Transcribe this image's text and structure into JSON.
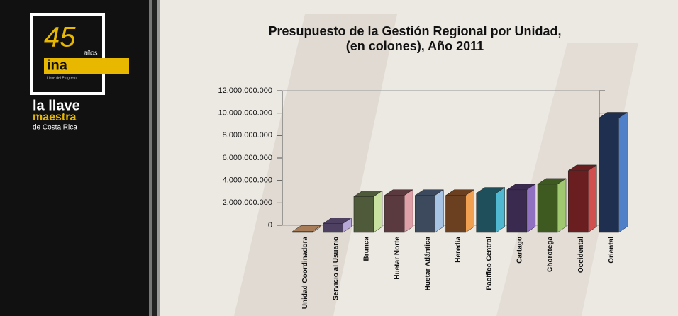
{
  "logo": {
    "number": "45",
    "years": "años",
    "brand": "ina",
    "motto": "Llave del Progreso",
    "line1": "la llave",
    "line2": "maestra",
    "line3": "de Costa Rica"
  },
  "chart_data": {
    "type": "bar3d",
    "title": "Presupuesto de la Gestión Regional por Unidad,",
    "subtitle": "(en colones), Año 2011",
    "categories": [
      "Unidad Coordinadora",
      "Servicio al Usuario",
      "Brunca",
      "Huetar Norte",
      "Huetar Atlántica",
      "Heredia",
      "Pacífico Central",
      "Cartago",
      "Chorotega",
      "Occidental",
      "Oriental"
    ],
    "values": [
      100000000,
      800000000,
      3200000000,
      3300000000,
      3300000000,
      3300000000,
      3500000000,
      3800000000,
      4300000000,
      5500000000,
      10200000000
    ],
    "colors": [
      "#a97c58",
      "#4d4060",
      "#4e5a3a",
      "#5a3a3e",
      "#3d4a5e",
      "#6b4020",
      "#1f4f5a",
      "#3a2a50",
      "#3e5a20",
      "#6a1e20",
      "#1f2f50"
    ],
    "side_colors": [
      "#d4a88a",
      "#b8a8d8",
      "#c8e0a0",
      "#e0a0a8",
      "#a8c4e4",
      "#f0a050",
      "#50b8d0",
      "#9070c0",
      "#a0c870",
      "#d05050",
      "#5080c8"
    ],
    "ylim": [
      0,
      12000000000
    ],
    "yticks": [
      0,
      {
        "value": 2000000000,
        "label": "2.000.000.000"
      },
      {
        "value": 4000000000,
        "label": "4.000.000.000"
      },
      {
        "value": 6000000000,
        "label": "6.000.000.000"
      },
      {
        "value": 8000000000,
        "label": "8.000.000.000"
      },
      {
        "value": 10000000000,
        "label": "10.000.000.000"
      },
      {
        "value": 12000000000,
        "label": "12.000.000.000"
      }
    ],
    "grid": false
  }
}
